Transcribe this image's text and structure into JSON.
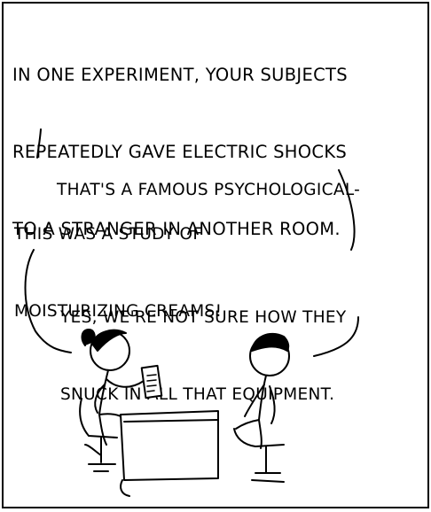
{
  "comic": {
    "narration": {
      "line1": "In one experiment, your subjects",
      "line2": "repeatedly gave electric shocks",
      "line3": "to a stranger in another room."
    },
    "interruption": {
      "line1": "That's a famous psychological-"
    },
    "reply": {
      "line1": "This was a study of",
      "line2": "moisturizing creams!"
    },
    "followup": {
      "line1": "Yes, we're not sure how they",
      "line2": "snuck in all that equipment."
    }
  }
}
